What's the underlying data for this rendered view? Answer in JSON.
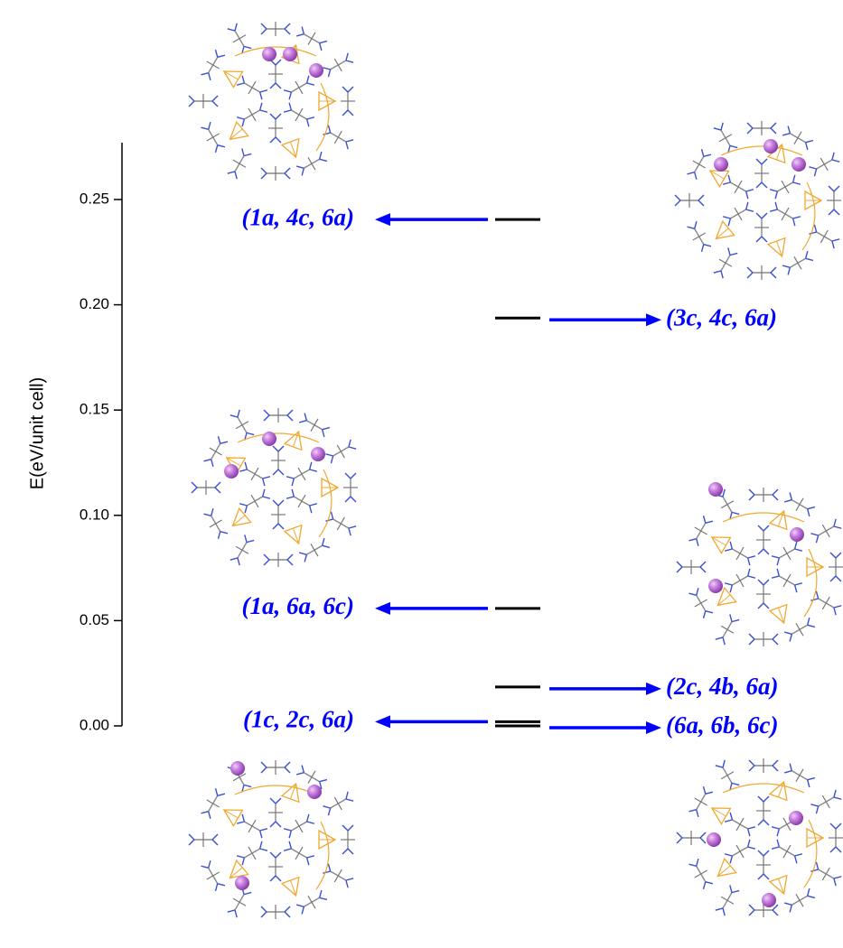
{
  "chart_data": {
    "type": "energy-levels",
    "y_label": "E(eV/unit cell)",
    "ylim": [
      0,
      0.277
    ],
    "yticks": [
      {
        "value": 0,
        "label": "0.00"
      },
      {
        "value": 0.05,
        "label": "0.05"
      },
      {
        "value": 0.1,
        "label": "0.10"
      },
      {
        "value": 0.15,
        "label": "0.15"
      },
      {
        "value": 0.2,
        "label": "0.20"
      },
      {
        "value": 0.25,
        "label": "0.25"
      }
    ],
    "level_color": "#000000",
    "arrow_color": "#0000ff",
    "levels": [
      {
        "label": "(1a, 4c, 6a)",
        "value": 0.2405,
        "side": "left"
      },
      {
        "label": "(3c, 4c, 6a)",
        "value": 0.1937,
        "side": "right"
      },
      {
        "label": "(1a, 6a, 6c)",
        "value": 0.0558,
        "side": "left"
      },
      {
        "label": "(2c, 4b, 6a)",
        "value": 0.0185,
        "side": "right"
      },
      {
        "label": "(1c, 2c, 6a)",
        "value": 0.002,
        "side": "left"
      },
      {
        "label": "(6a, 6b, 6c)",
        "value": 0,
        "side": "right"
      }
    ]
  }
}
